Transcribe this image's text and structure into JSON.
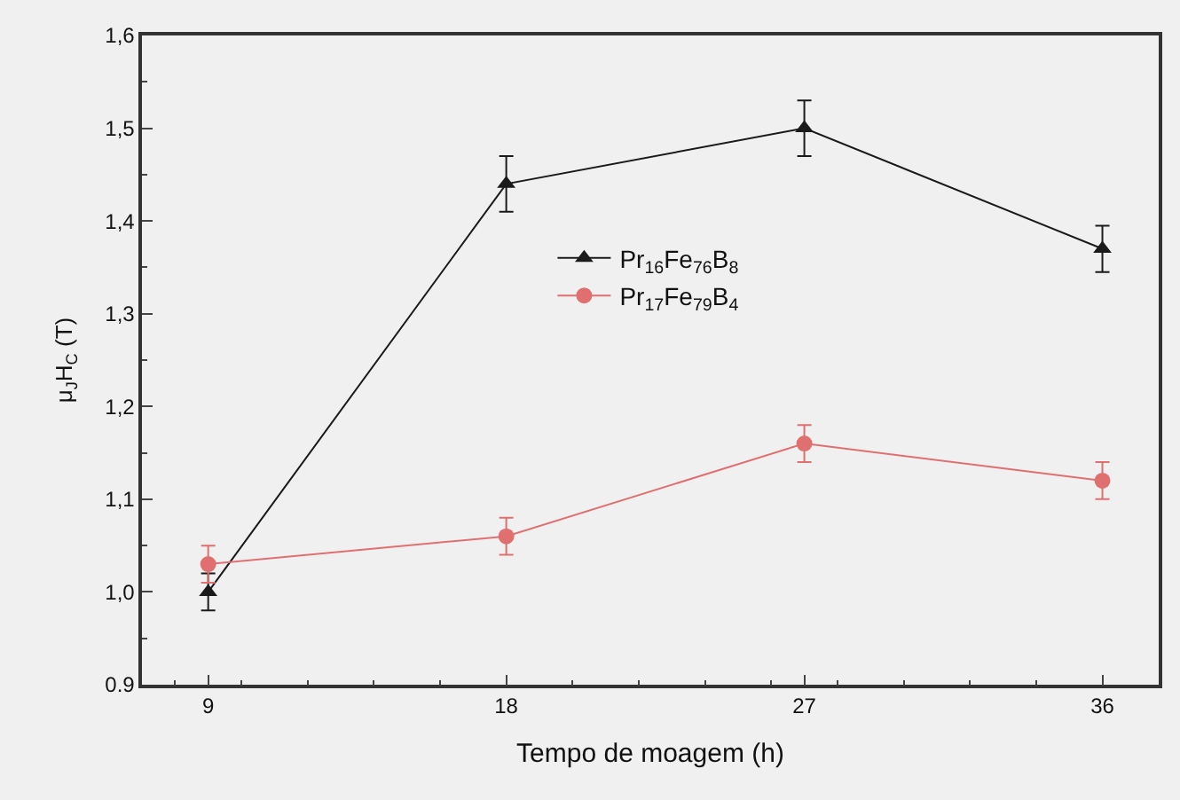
{
  "chart_data": {
    "type": "line",
    "xlabel": "Tempo de moagem (h)",
    "ylabel": "μ$_{J}$H$_{C}$ (T)",
    "x": [
      9,
      18,
      27,
      36
    ],
    "series": [
      {
        "name": "Pr$_{16}$Fe$_{76}$B$_{8}$",
        "color": "#1a1a1a",
        "marker": "triangle",
        "values": [
          1.0,
          1.44,
          1.5,
          1.37
        ],
        "errors": [
          0.02,
          0.03,
          0.03,
          0.025
        ]
      },
      {
        "name": "Pr$_{17}$Fe$_{79}$B$_{4}$",
        "color": "#e07070",
        "marker": "circle",
        "values": [
          1.03,
          1.06,
          1.16,
          1.12
        ],
        "errors": [
          0.02,
          0.02,
          0.02,
          0.02
        ]
      }
    ],
    "xlim": [
      7,
      37.7
    ],
    "xticks": [
      9,
      18,
      27,
      36
    ],
    "ylim": [
      0.9,
      1.6
    ],
    "yticks": [
      {
        "value": 0.9,
        "label": "0.9"
      },
      {
        "value": 1.0,
        "label": "1,0"
      },
      {
        "value": 1.1,
        "label": "1,1"
      },
      {
        "value": 1.2,
        "label": "1,2"
      },
      {
        "value": 1.3,
        "label": "1,3"
      },
      {
        "value": 1.4,
        "label": "1,4"
      },
      {
        "value": 1.5,
        "label": "1,5"
      },
      {
        "value": 1.6,
        "label": "1,6"
      }
    ],
    "grid": false,
    "legend": "top",
    "line_style": "solid"
  }
}
